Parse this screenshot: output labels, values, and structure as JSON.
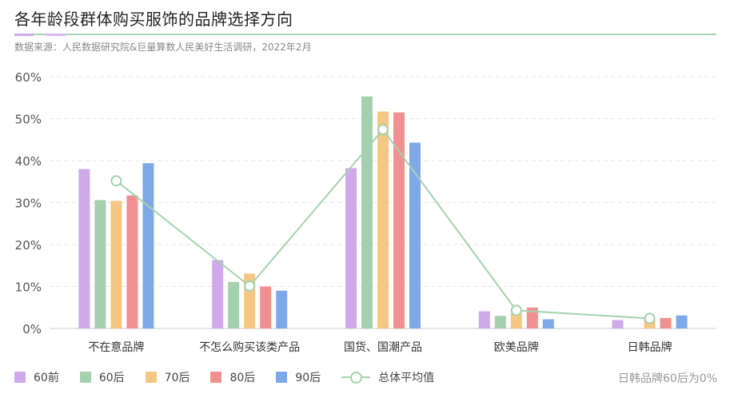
{
  "title": "各年龄段群体购买服饰的品牌选择方向",
  "source": "数据来源：人民数据研究院&巨量算数人民美好生活调研，2022年2月",
  "footnote": "日韩品牌60后为0%",
  "chart_data": {
    "type": "bar",
    "categories": [
      "不在意品牌",
      "不怎么购买该类产品",
      "国货、国潮产品",
      "欧美品牌",
      "日韩品牌"
    ],
    "series": [
      {
        "name": "60前",
        "color": "#cfa9e8",
        "values": [
          38,
          16.3,
          38.2,
          4.1,
          2.0
        ]
      },
      {
        "name": "60后",
        "color": "#a5d0b0",
        "values": [
          30.6,
          11.1,
          55.3,
          3.0,
          0
        ]
      },
      {
        "name": "70后",
        "color": "#f4c882",
        "values": [
          30.4,
          13.1,
          51.7,
          3.6,
          2.4
        ]
      },
      {
        "name": "80后",
        "color": "#f09090",
        "values": [
          31.7,
          10.0,
          51.5,
          5.0,
          2.5
        ]
      },
      {
        "name": "90后",
        "color": "#7ea9e8",
        "values": [
          39.4,
          9.0,
          44.3,
          2.2,
          3.1
        ]
      }
    ],
    "line_series": {
      "name": "总体平均值",
      "color": "#a5d2ae",
      "values": [
        35.2,
        10.1,
        47.4,
        4.3,
        2.4
      ]
    },
    "yticks": [
      "0%",
      "10%",
      "20%",
      "30%",
      "40%",
      "50%",
      "60%"
    ],
    "ylim": [
      0,
      60
    ],
    "grid": true,
    "legend_position": "bottom"
  }
}
